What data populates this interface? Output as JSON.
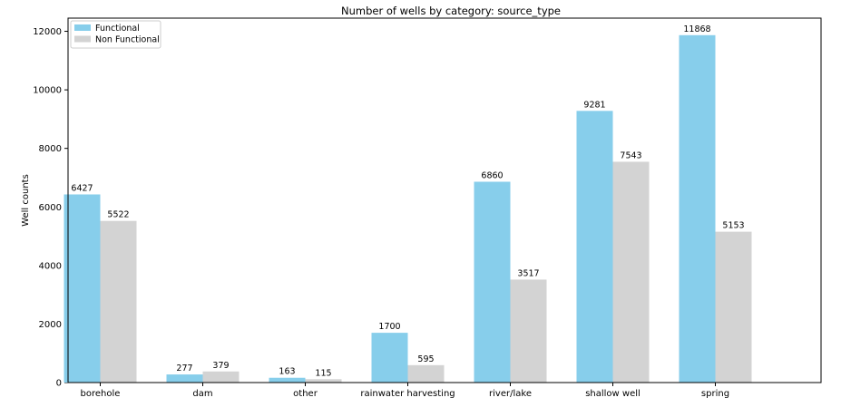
{
  "chart_data": {
    "type": "bar",
    "title": "Number of wells by category: source_type",
    "xlabel": "",
    "ylabel": "Well counts",
    "categories": [
      "borehole",
      "dam",
      "other",
      "rainwater harvesting",
      "river/lake",
      "shallow well",
      "spring"
    ],
    "series": [
      {
        "name": "Functional",
        "color": "#87ceeb",
        "values": [
          6427,
          277,
          163,
          1700,
          6860,
          9281,
          11868
        ]
      },
      {
        "name": "Non Functional",
        "color": "#d3d3d3",
        "values": [
          5522,
          379,
          115,
          595,
          3517,
          7543,
          5153
        ]
      }
    ],
    "ylim": [
      0,
      12450
    ],
    "yticks": [
      0,
      2000,
      4000,
      6000,
      8000,
      10000,
      12000
    ],
    "grid": false,
    "legend": "top-left",
    "data_labels": true
  }
}
